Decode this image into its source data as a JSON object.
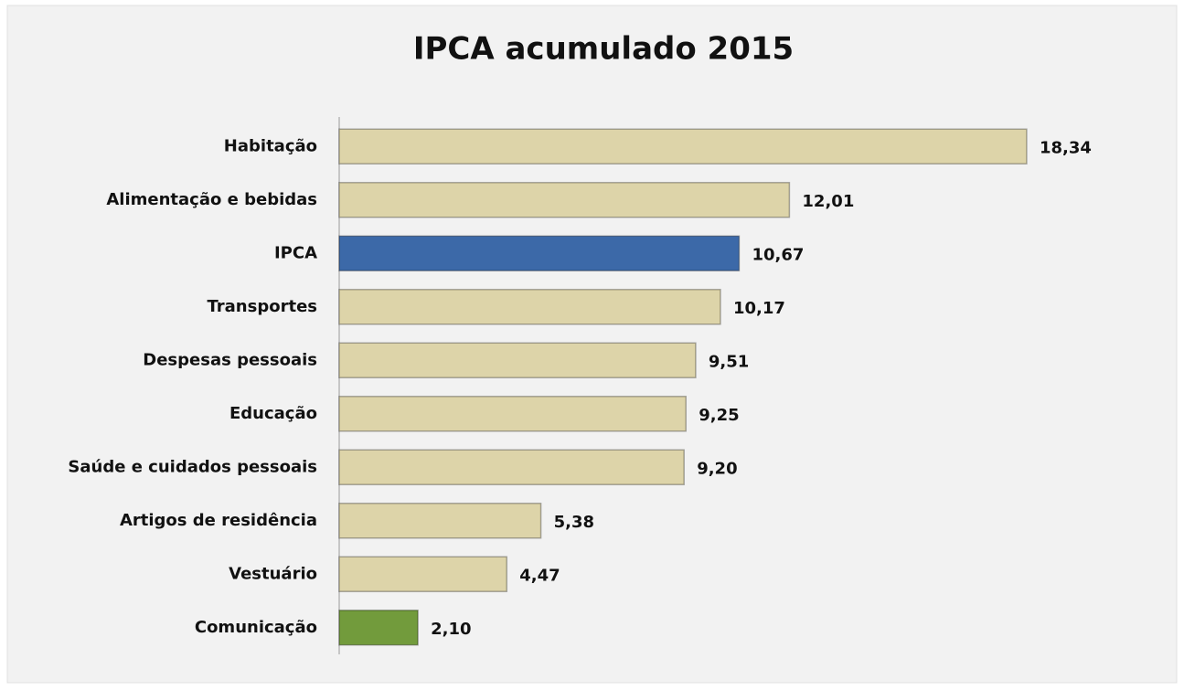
{
  "chart_data": {
    "type": "barh",
    "title": "IPCA acumulado 2015",
    "categories": [
      "Habitação",
      "Alimentação e bebidas",
      "IPCA",
      "Transportes",
      "Despesas pessoais",
      "Educação",
      "Saúde e cuidados pessoais",
      "Artigos de residência",
      "Vestuário",
      "Comunicação"
    ],
    "values": [
      18.34,
      12.01,
      10.67,
      10.17,
      9.51,
      9.25,
      9.2,
      5.38,
      4.47,
      2.1
    ],
    "value_labels": [
      "18,34",
      "12,01",
      "10,67",
      "10,17",
      "9,51",
      "9,25",
      "9,20",
      "5,38",
      "4,47",
      "2,10"
    ],
    "colors": [
      "#ddd4a9",
      "#ddd4a9",
      "#3c69a8",
      "#ddd4a9",
      "#ddd4a9",
      "#ddd4a9",
      "#ddd4a9",
      "#ddd4a9",
      "#ddd4a9",
      "#729b3c"
    ],
    "xlim": [
      0,
      20
    ]
  }
}
